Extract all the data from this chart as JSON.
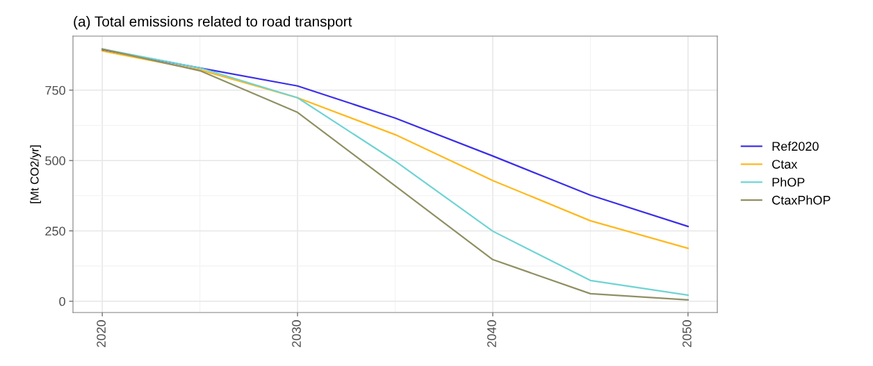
{
  "chart_data": {
    "type": "line",
    "title": "(a) Total emissions related to road transport",
    "ylabel": "[Mt CO2/yr]",
    "x": [
      2020,
      2025,
      2030,
      2035,
      2040,
      2045,
      2050
    ],
    "series": [
      {
        "name": "Ref2020",
        "color": "#3b2ee8",
        "values": [
          893,
          829,
          765,
          651,
          516,
          377,
          266
        ]
      },
      {
        "name": "Ctax",
        "color": "#ffb81c",
        "values": [
          889,
          822,
          723,
          592,
          429,
          286,
          188
        ]
      },
      {
        "name": "PhOP",
        "color": "#6fd3d3",
        "values": [
          896,
          829,
          723,
          498,
          249,
          74,
          22
        ]
      },
      {
        "name": "CtaxPhOP",
        "color": "#8f8f63",
        "values": [
          896,
          819,
          671,
          410,
          148,
          27,
          5
        ]
      }
    ],
    "xlim": [
      2018.5,
      2051.5
    ],
    "xticks": [
      2020,
      2030,
      2040,
      2050
    ],
    "ylim": [
      -40,
      942
    ],
    "yticks": [
      0,
      250,
      500,
      750
    ],
    "grid": true,
    "legend": "right",
    "marker": "none",
    "line_style": "solid"
  }
}
